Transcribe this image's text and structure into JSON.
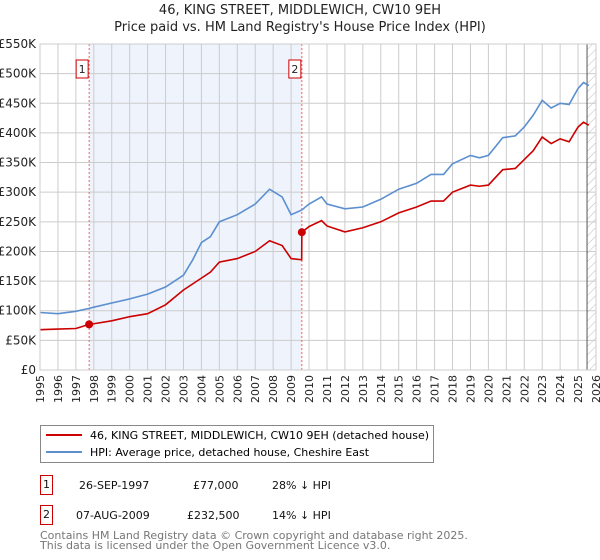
{
  "chart_data": {
    "type": "line",
    "title": "46, KING STREET, MIDDLEWICH, CW10 9EH",
    "subtitle": "Price paid vs. HM Land Registry's House Price Index (HPI)",
    "xlim": [
      1995,
      2026
    ],
    "ylim": [
      0,
      550000
    ],
    "x_ticks": [
      "1995",
      "1996",
      "1997",
      "1998",
      "1999",
      "2000",
      "2001",
      "2002",
      "2003",
      "2004",
      "2005",
      "2006",
      "2007",
      "2008",
      "2009",
      "2010",
      "2011",
      "2012",
      "2013",
      "2014",
      "2015",
      "2016",
      "2017",
      "2018",
      "2019",
      "2020",
      "2021",
      "2022",
      "2023",
      "2024",
      "2025",
      "2026"
    ],
    "y_ticks": [
      {
        "v": 0,
        "label": "£0"
      },
      {
        "v": 50000,
        "label": "£50K"
      },
      {
        "v": 100000,
        "label": "£100K"
      },
      {
        "v": 150000,
        "label": "£150K"
      },
      {
        "v": 200000,
        "label": "£200K"
      },
      {
        "v": 250000,
        "label": "£250K"
      },
      {
        "v": 300000,
        "label": "£300K"
      },
      {
        "v": 350000,
        "label": "£350K"
      },
      {
        "v": 400000,
        "label": "£400K"
      },
      {
        "v": 450000,
        "label": "£450K"
      },
      {
        "v": 500000,
        "label": "£500K"
      },
      {
        "v": 550000,
        "label": "£550K"
      }
    ],
    "grid": true,
    "shaded_range": [
      1997.74,
      2009.6
    ],
    "forecast_hatch_from": 2025.5,
    "series": [
      {
        "name": "46, KING STREET, MIDDLEWICH, CW10 9EH (detached house)",
        "color": "#cc0000",
        "x": [
          1995,
          1996,
          1997,
          1997.74,
          1998,
          1999,
          2000,
          2001,
          2002,
          2003,
          2004,
          2004.5,
          2005,
          2006,
          2007,
          2007.8,
          2008.5,
          2009,
          2009.59,
          2009.6,
          2010,
          2010.7,
          2011,
          2012,
          2013,
          2014,
          2015,
          2016,
          2016.8,
          2017.5,
          2018,
          2019,
          2019.5,
          2020,
          2020.8,
          2021.5,
          2022,
          2022.5,
          2023,
          2023.5,
          2024,
          2024.5,
          2025,
          2025.3,
          2025.6
        ],
        "y": [
          68000,
          69000,
          70000,
          77000,
          78000,
          83000,
          90000,
          95000,
          110000,
          135000,
          155000,
          165000,
          182000,
          188000,
          200000,
          218000,
          210000,
          188000,
          186000,
          232500,
          242000,
          252000,
          243000,
          233000,
          240000,
          250000,
          265000,
          275000,
          285000,
          285000,
          300000,
          312000,
          310000,
          312000,
          338000,
          340000,
          355000,
          370000,
          393000,
          382000,
          390000,
          385000,
          410000,
          418000,
          413000
        ]
      },
      {
        "name": "HPI: Average price, detached house, Cheshire East",
        "color": "#5b8fd0",
        "x": [
          1995,
          1996,
          1997,
          1997.74,
          1998,
          1999,
          2000,
          2001,
          2002,
          2003,
          2003.5,
          2004,
          2004.5,
          2005,
          2006,
          2007,
          2007.8,
          2008.5,
          2009,
          2009.6,
          2010,
          2010.7,
          2011,
          2012,
          2013,
          2014,
          2015,
          2016,
          2016.8,
          2017.5,
          2018,
          2019,
          2019.5,
          2020,
          2020.8,
          2021.5,
          2022,
          2022.5,
          2023,
          2023.5,
          2024,
          2024.5,
          2025,
          2025.3,
          2025.6
        ],
        "y": [
          97000,
          95000,
          99000,
          104000,
          106000,
          113000,
          120000,
          128000,
          140000,
          160000,
          185000,
          215000,
          225000,
          250000,
          262000,
          280000,
          305000,
          292000,
          262000,
          270000,
          280000,
          292000,
          280000,
          272000,
          275000,
          288000,
          305000,
          315000,
          330000,
          330000,
          348000,
          362000,
          358000,
          362000,
          392000,
          395000,
          410000,
          430000,
          455000,
          442000,
          450000,
          448000,
          475000,
          485000,
          480000
        ]
      }
    ],
    "annotations": [
      {
        "label": "1",
        "x": 1997.74,
        "y": 77000
      },
      {
        "label": "2",
        "x": 2009.6,
        "y": 232500
      }
    ]
  },
  "legend": [
    "46, KING STREET, MIDDLEWICH, CW10 9EH (detached house)",
    "HPI: Average price, detached house, Cheshire East"
  ],
  "transactions": [
    {
      "num": "1",
      "date": "26-SEP-1997",
      "price": "£77,000",
      "hpi": "28% ↓ HPI"
    },
    {
      "num": "2",
      "date": "07-AUG-2009",
      "price": "£232,500",
      "hpi": "14% ↓ HPI"
    }
  ],
  "footer": [
    "Contains HM Land Registry data © Crown copyright and database right 2025.",
    "This data is licensed under the Open Government Licence v3.0."
  ]
}
